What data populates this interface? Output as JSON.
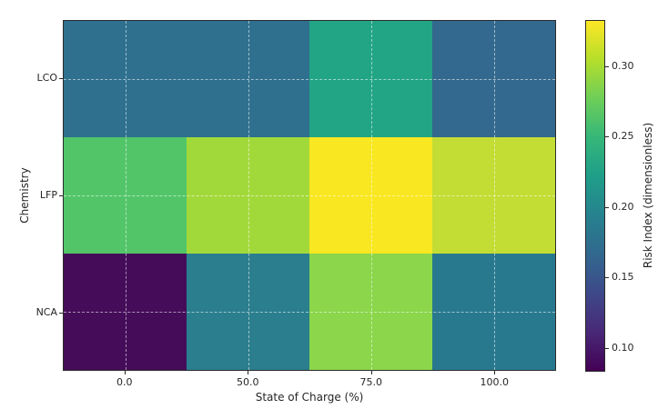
{
  "figure": {
    "xlabel": "State of Charge (%)",
    "ylabel": "Chemistry",
    "colorbar_label": "Risk Index (dimensionless)"
  },
  "chart_data": {
    "type": "heatmap",
    "title": "",
    "xlabel": "State of Charge (%)",
    "ylabel": "Chemistry",
    "x_categories": [
      "0.0",
      "50.0",
      "75.0",
      "100.0"
    ],
    "y_categories": [
      "LCO",
      "LFP",
      "NCA"
    ],
    "values": [
      [
        0.18,
        0.18,
        0.23,
        0.17
      ],
      [
        0.26,
        0.3,
        0.33,
        0.31
      ],
      [
        0.08,
        0.19,
        0.29,
        0.19
      ]
    ],
    "cell_colors": [
      [
        "#2e708e",
        "#2e708e",
        "#22a585",
        "#33698e"
      ],
      [
        "#52c569",
        "#a2d93a",
        "#f9e721",
        "#c3dd34"
      ],
      [
        "#450d59",
        "#2a7e8e",
        "#8bd64b",
        "#28798e"
      ]
    ],
    "colormap": "viridis",
    "colorbar_range": [
      0.083,
      0.333
    ],
    "colorbar_label": "Risk Index (dimensionless)",
    "colorbar_ticks": [
      {
        "label": "0.30",
        "value": 0.3
      },
      {
        "label": "0.25",
        "value": 0.25
      },
      {
        "label": "0.20",
        "value": 0.2
      },
      {
        "label": "0.15",
        "value": 0.15
      },
      {
        "label": "0.10",
        "value": 0.1
      }
    ],
    "grid": true,
    "legend": false
  }
}
